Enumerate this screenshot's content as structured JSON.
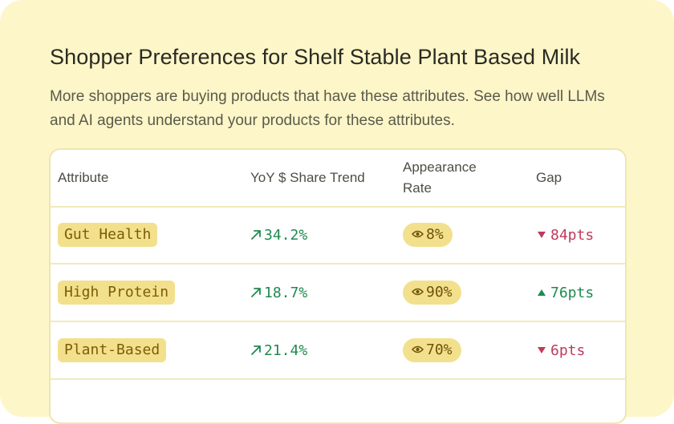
{
  "header": {
    "title": "Shopper Preferences for Shelf Stable Plant Based Milk",
    "subtitle": "More shoppers are buying products that have these attributes. See how well LLMs and AI agents understand your products for these attributes."
  },
  "table": {
    "columns": {
      "attribute": "Attribute",
      "trend": "YoY $ Share Trend",
      "appearance": "Appearance Rate",
      "gap": "Gap"
    },
    "rows": [
      {
        "attribute": "Gut Health",
        "trend": "34.2%",
        "appearance": "8%",
        "gap": "84pts",
        "gap_direction": "down"
      },
      {
        "attribute": "High Protein",
        "trend": "18.7%",
        "appearance": "90%",
        "gap": "76pts",
        "gap_direction": "up"
      },
      {
        "attribute": "Plant-Based",
        "trend": "21.4%",
        "appearance": "70%",
        "gap": "6pts",
        "gap_direction": "down"
      }
    ]
  },
  "icons": {
    "trend": "trend-up-arrow-icon",
    "appearance": "eye-icon",
    "gap_down": "triangle-down-icon",
    "gap_up": "triangle-up-icon"
  },
  "colors": {
    "card_background": "#fdf6c8",
    "chip_background": "#f3e08c",
    "positive": "#1f8a50",
    "negative": "#c03a5a"
  }
}
